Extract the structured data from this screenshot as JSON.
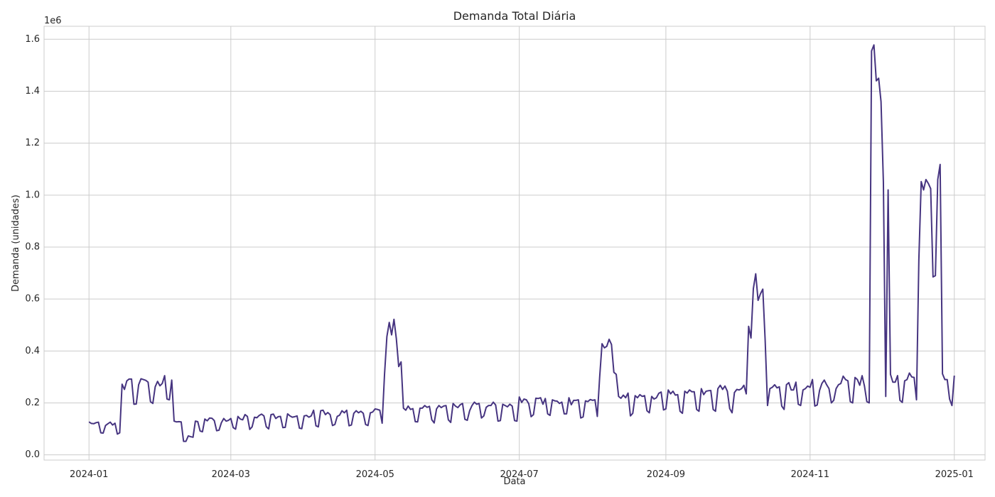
{
  "chart_data": {
    "type": "line",
    "title": "Demanda Total Diária",
    "xlabel": "Data",
    "ylabel": "Demanda (unidades)",
    "y_offset_label": "1e6",
    "ylim": [
      -0.02,
      1.65
    ],
    "xlim": [
      "2023-12-13",
      "2025-01-14"
    ],
    "grid": true,
    "x_ticks": [
      "2024-01",
      "2024-03",
      "2024-05",
      "2024-07",
      "2024-09",
      "2024-11",
      "2025-01"
    ],
    "y_ticks": [
      "0.0",
      "0.2",
      "0.4",
      "0.6",
      "0.8",
      "1.0",
      "1.2",
      "1.4",
      "1.6"
    ],
    "series": [
      {
        "color": "#463480",
        "start_date": "2024-01-01",
        "values": [
          0.127,
          0.121,
          0.12,
          0.124,
          0.126,
          0.085,
          0.084,
          0.113,
          0.12,
          0.126,
          0.115,
          0.122,
          0.08,
          0.085,
          0.272,
          0.252,
          0.285,
          0.292,
          0.292,
          0.195,
          0.196,
          0.27,
          0.293,
          0.29,
          0.287,
          0.28,
          0.205,
          0.198,
          0.262,
          0.283,
          0.266,
          0.275,
          0.305,
          0.215,
          0.212,
          0.288,
          0.13,
          0.127,
          0.128,
          0.127,
          0.052,
          0.052,
          0.073,
          0.07,
          0.068,
          0.13,
          0.128,
          0.092,
          0.089,
          0.138,
          0.131,
          0.142,
          0.141,
          0.132,
          0.093,
          0.095,
          0.124,
          0.14,
          0.13,
          0.133,
          0.14,
          0.105,
          0.099,
          0.148,
          0.138,
          0.135,
          0.155,
          0.148,
          0.098,
          0.108,
          0.145,
          0.143,
          0.152,
          0.157,
          0.15,
          0.108,
          0.1,
          0.155,
          0.157,
          0.14,
          0.147,
          0.148,
          0.105,
          0.106,
          0.158,
          0.15,
          0.145,
          0.147,
          0.15,
          0.103,
          0.101,
          0.15,
          0.152,
          0.145,
          0.15,
          0.172,
          0.112,
          0.108,
          0.17,
          0.172,
          0.155,
          0.163,
          0.155,
          0.113,
          0.117,
          0.148,
          0.153,
          0.17,
          0.162,
          0.172,
          0.112,
          0.115,
          0.16,
          0.17,
          0.162,
          0.168,
          0.16,
          0.117,
          0.113,
          0.162,
          0.165,
          0.177,
          0.175,
          0.172,
          0.122,
          0.31,
          0.455,
          0.51,
          0.462,
          0.522,
          0.447,
          0.34,
          0.358,
          0.18,
          0.172,
          0.188,
          0.175,
          0.178,
          0.128,
          0.127,
          0.18,
          0.18,
          0.19,
          0.183,
          0.187,
          0.135,
          0.123,
          0.177,
          0.19,
          0.182,
          0.188,
          0.19,
          0.135,
          0.125,
          0.198,
          0.188,
          0.182,
          0.193,
          0.198,
          0.137,
          0.133,
          0.17,
          0.19,
          0.203,
          0.195,
          0.198,
          0.142,
          0.15,
          0.183,
          0.19,
          0.19,
          0.203,
          0.192,
          0.13,
          0.132,
          0.195,
          0.19,
          0.185,
          0.195,
          0.188,
          0.132,
          0.13,
          0.223,
          0.202,
          0.215,
          0.212,
          0.197,
          0.147,
          0.155,
          0.218,
          0.217,
          0.22,
          0.195,
          0.217,
          0.158,
          0.152,
          0.212,
          0.208,
          0.207,
          0.198,
          0.203,
          0.158,
          0.158,
          0.22,
          0.193,
          0.21,
          0.21,
          0.212,
          0.142,
          0.146,
          0.208,
          0.205,
          0.213,
          0.21,
          0.212,
          0.148,
          0.3,
          0.428,
          0.412,
          0.418,
          0.445,
          0.425,
          0.318,
          0.31,
          0.225,
          0.218,
          0.23,
          0.22,
          0.238,
          0.15,
          0.16,
          0.228,
          0.22,
          0.232,
          0.225,
          0.228,
          0.17,
          0.162,
          0.225,
          0.215,
          0.22,
          0.237,
          0.242,
          0.173,
          0.177,
          0.25,
          0.235,
          0.245,
          0.23,
          0.232,
          0.168,
          0.16,
          0.245,
          0.238,
          0.25,
          0.243,
          0.243,
          0.175,
          0.168,
          0.255,
          0.232,
          0.245,
          0.247,
          0.248,
          0.175,
          0.168,
          0.255,
          0.268,
          0.252,
          0.265,
          0.245,
          0.178,
          0.162,
          0.24,
          0.252,
          0.25,
          0.255,
          0.268,
          0.235,
          0.495,
          0.45,
          0.64,
          0.697,
          0.595,
          0.62,
          0.638,
          0.44,
          0.19,
          0.255,
          0.26,
          0.27,
          0.258,
          0.262,
          0.188,
          0.175,
          0.27,
          0.278,
          0.25,
          0.25,
          0.28,
          0.195,
          0.19,
          0.25,
          0.255,
          0.265,
          0.26,
          0.29,
          0.188,
          0.192,
          0.248,
          0.275,
          0.288,
          0.27,
          0.255,
          0.2,
          0.21,
          0.255,
          0.27,
          0.275,
          0.303,
          0.29,
          0.285,
          0.205,
          0.2,
          0.298,
          0.29,
          0.268,
          0.305,
          0.265,
          0.205,
          0.2,
          1.555,
          1.578,
          1.44,
          1.45,
          1.36,
          1.05,
          0.225,
          1.02,
          0.31,
          0.28,
          0.28,
          0.305,
          0.21,
          0.202,
          0.285,
          0.29,
          0.315,
          0.3,
          0.298,
          0.212,
          0.75,
          1.052,
          1.02,
          1.06,
          1.045,
          1.025,
          0.685,
          0.69,
          1.06,
          1.118,
          0.312,
          0.29,
          0.29,
          0.215,
          0.19,
          0.305
        ]
      }
    ]
  }
}
